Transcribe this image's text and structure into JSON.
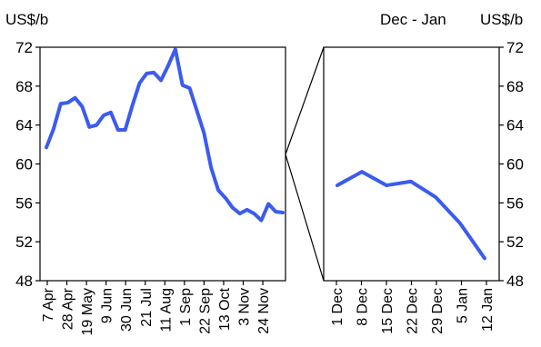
{
  "chart_data": [
    {
      "type": "line",
      "title": "",
      "unit_label": "US$/b",
      "ylim": [
        48,
        72
      ],
      "y_ticks": [
        "48",
        "52",
        "56",
        "60",
        "64",
        "68",
        "72"
      ],
      "x_tick_labels": [
        "7 Apr",
        "28 Apr",
        "19 May",
        "9 Jun",
        "30 Jun",
        "21 Jul",
        "11 Aug",
        "1 Sep",
        "22 Sep",
        "13 Oct",
        "3 Nov",
        "24 Nov"
      ],
      "series": [
        {
          "color": "#3b5bf0",
          "values": [
            61.7,
            63.6,
            66.2,
            66.3,
            66.8,
            65.9,
            63.8,
            64.0,
            65.0,
            65.3,
            63.5,
            63.5,
            66.0,
            68.3,
            69.3,
            69.4,
            68.6,
            70.1,
            71.8,
            68.1,
            67.8,
            65.5,
            63.2,
            59.6,
            57.3,
            56.5,
            55.5,
            54.9,
            55.3,
            54.9,
            54.2,
            55.9,
            55.1,
            55.0
          ]
        }
      ]
    },
    {
      "type": "line",
      "title": "Dec - Jan",
      "unit_label": "US$/b",
      "ylim": [
        48,
        72
      ],
      "y_ticks": [
        "48",
        "52",
        "56",
        "60",
        "64",
        "68",
        "72"
      ],
      "x_tick_labels": [
        "1 Dec",
        "8 Dec",
        "15 Dec",
        "22 Dec",
        "29 Dec",
        "5 Jan",
        "12 Jan"
      ],
      "series": [
        {
          "color": "#3b5bf0",
          "values": [
            57.8,
            59.2,
            57.8,
            58.2,
            56.6,
            53.9,
            50.3
          ]
        }
      ]
    }
  ]
}
